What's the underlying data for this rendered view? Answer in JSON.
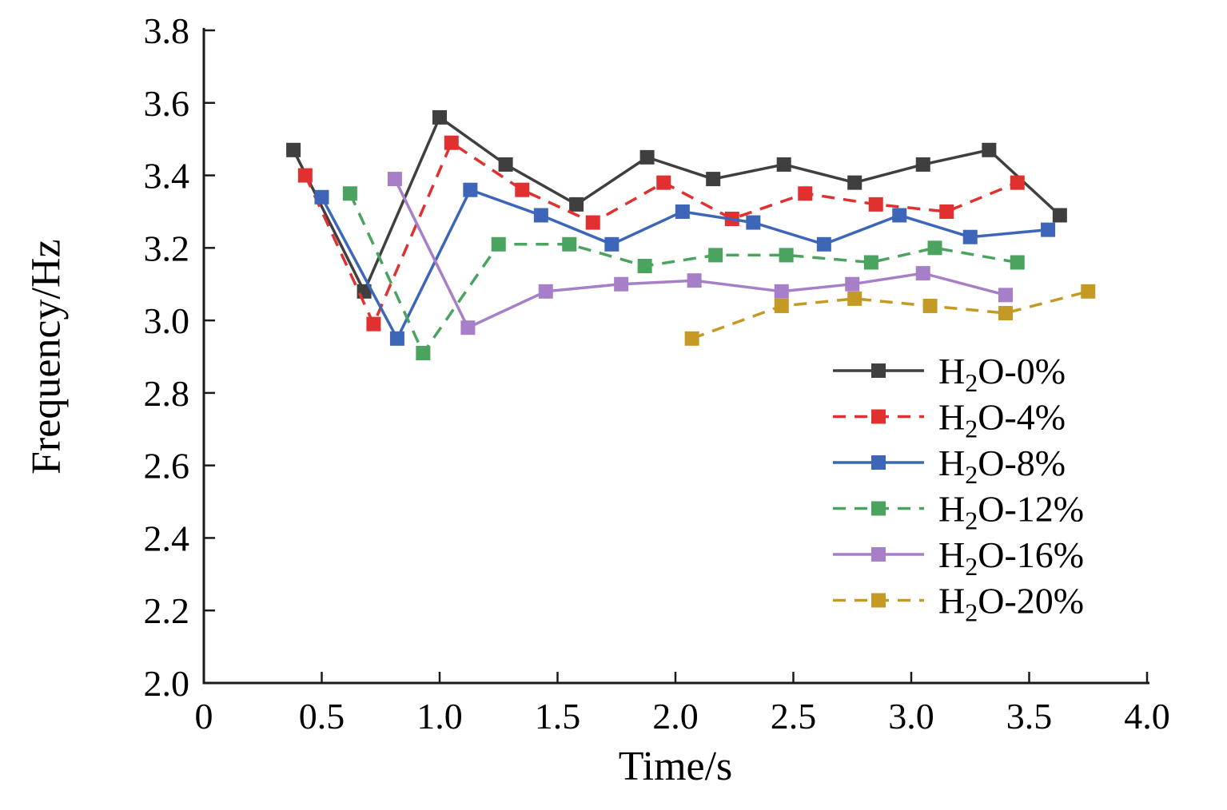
{
  "chart_data": {
    "type": "line",
    "title": "",
    "xlabel": "Time/s",
    "ylabel": "Frequency/Hz",
    "xlim": [
      0,
      4.0
    ],
    "ylim": [
      2.0,
      3.8
    ],
    "xtick_values": [
      0,
      0.5,
      1.0,
      1.5,
      2.0,
      2.5,
      3.0,
      3.5,
      4.0
    ],
    "xtick_labels": [
      "0",
      "0.5",
      "1.0",
      "1.5",
      "2.0",
      "2.5",
      "3.0",
      "3.5",
      "4.0"
    ],
    "ytick_values": [
      2.0,
      2.2,
      2.4,
      2.6,
      2.8,
      3.0,
      3.2,
      3.4,
      3.6,
      3.8
    ],
    "ytick_labels": [
      "2.0",
      "2.2",
      "2.4",
      "2.6",
      "2.8",
      "3.0",
      "3.2",
      "3.4",
      "3.6",
      "3.8"
    ],
    "grid": false,
    "marker": "square",
    "legend_position": "inside-lower-right",
    "axis_color": "#1a1a1a",
    "series": [
      {
        "name": "H2O-0%",
        "label": {
          "pre": "H",
          "sub": "2",
          "post": "O-0%"
        },
        "color": "#3f3f3f",
        "line_style": "solid",
        "points": [
          [
            0.38,
            3.47
          ],
          [
            0.68,
            3.08
          ],
          [
            1.0,
            3.56
          ],
          [
            1.28,
            3.43
          ],
          [
            1.58,
            3.32
          ],
          [
            1.88,
            3.45
          ],
          [
            2.16,
            3.39
          ],
          [
            2.46,
            3.43
          ],
          [
            2.76,
            3.38
          ],
          [
            3.05,
            3.43
          ],
          [
            3.33,
            3.47
          ],
          [
            3.63,
            3.29
          ]
        ]
      },
      {
        "name": "H2O-4%",
        "label": {
          "pre": "H",
          "sub": "2",
          "post": "O-4%"
        },
        "color": "#e03030",
        "line_style": "dashed",
        "points": [
          [
            0.43,
            3.4
          ],
          [
            0.72,
            2.99
          ],
          [
            1.05,
            3.49
          ],
          [
            1.35,
            3.36
          ],
          [
            1.65,
            3.27
          ],
          [
            1.95,
            3.38
          ],
          [
            2.24,
            3.28
          ],
          [
            2.55,
            3.35
          ],
          [
            2.85,
            3.32
          ],
          [
            3.15,
            3.3
          ],
          [
            3.45,
            3.38
          ]
        ]
      },
      {
        "name": "H2O-8%",
        "label": {
          "pre": "H",
          "sub": "2",
          "post": "O-8%"
        },
        "color": "#3d66b8",
        "line_style": "solid",
        "points": [
          [
            0.5,
            3.34
          ],
          [
            0.82,
            2.95
          ],
          [
            1.13,
            3.36
          ],
          [
            1.43,
            3.29
          ],
          [
            1.73,
            3.21
          ],
          [
            2.03,
            3.3
          ],
          [
            2.33,
            3.27
          ],
          [
            2.63,
            3.21
          ],
          [
            2.95,
            3.29
          ],
          [
            3.25,
            3.23
          ],
          [
            3.58,
            3.25
          ]
        ]
      },
      {
        "name": "H2O-12%",
        "label": {
          "pre": "H",
          "sub": "2",
          "post": "O-12%"
        },
        "color": "#4aa35e",
        "line_style": "dashed",
        "points": [
          [
            0.62,
            3.35
          ],
          [
            0.93,
            2.91
          ],
          [
            1.25,
            3.21
          ],
          [
            1.55,
            3.21
          ],
          [
            1.87,
            3.15
          ],
          [
            2.17,
            3.18
          ],
          [
            2.47,
            3.18
          ],
          [
            2.83,
            3.16
          ],
          [
            3.1,
            3.2
          ],
          [
            3.45,
            3.16
          ]
        ]
      },
      {
        "name": "H2O-16%",
        "label": {
          "pre": "H",
          "sub": "2",
          "post": "O-16%"
        },
        "color": "#a77fc9",
        "line_style": "solid",
        "points": [
          [
            0.81,
            3.39
          ],
          [
            1.12,
            2.98
          ],
          [
            1.45,
            3.08
          ],
          [
            1.77,
            3.1
          ],
          [
            2.08,
            3.11
          ],
          [
            2.45,
            3.08
          ],
          [
            2.75,
            3.1
          ],
          [
            3.05,
            3.13
          ],
          [
            3.4,
            3.07
          ]
        ]
      },
      {
        "name": "H2O-20%",
        "label": {
          "pre": "H",
          "sub": "2",
          "post": "O-20%"
        },
        "color": "#c49a24",
        "line_style": "dashed",
        "points": [
          [
            2.07,
            2.95
          ],
          [
            2.45,
            3.04
          ],
          [
            2.76,
            3.06
          ],
          [
            3.08,
            3.04
          ],
          [
            3.4,
            3.02
          ],
          [
            3.75,
            3.08
          ]
        ]
      }
    ]
  }
}
